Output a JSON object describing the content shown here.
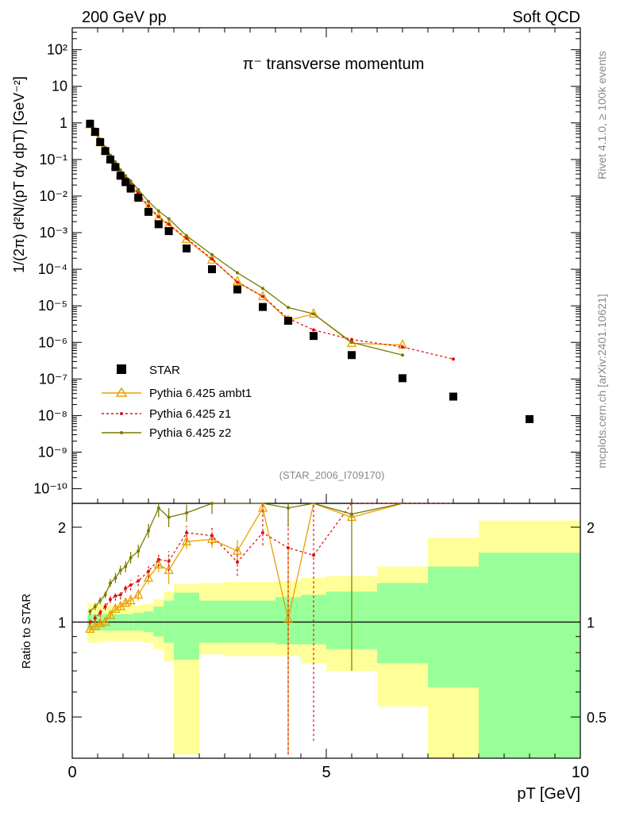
{
  "chart_data": {
    "type": "scatter",
    "header_left": "200 GeV pp",
    "header_right": "Soft QCD",
    "title": "π⁻ transverse momentum",
    "analysis_tag": "(STAR_2006_I709170)",
    "side_text_top": "Rivet 4.1.0, ≥ 100k events",
    "side_text_bottom": "mcplots.cern.ch [arXiv:2401.10621]",
    "ylabel": "1/(2π)  d²N/(pT dy dpT) [GeV⁻²]",
    "ratio_ylabel": "Ratio to STAR",
    "xlabel": "pT [GeV]",
    "xlim": [
      0,
      10
    ],
    "ylim_log10": [
      -10.4,
      2.6
    ],
    "ratio_ylim": [
      0.37,
      2.38
    ],
    "x_ticks": [
      "0",
      "5",
      "10"
    ],
    "y_ticks": [
      "10⁻¹⁰",
      "10⁻⁹",
      "10⁻⁸",
      "10⁻⁷",
      "10⁻⁶",
      "10⁻⁵",
      "10⁻⁴",
      "10⁻³",
      "10⁻²",
      "10⁻¹",
      "1",
      "10",
      "10²"
    ],
    "ratio_ticks": [
      "0.5",
      "1",
      "2"
    ],
    "legend": [
      "STAR",
      "Pythia 6.425 ambt1",
      "Pythia 6.425 z1",
      "Pythia 6.425 z2"
    ],
    "colors": {
      "data": "#000000",
      "ambt1": "#e8a000",
      "z1": "#dd1111",
      "z2": "#7a7a00",
      "band_inner": "#99ff99",
      "band_outer": "#ffff99"
    },
    "data": {
      "x": [
        0.35,
        0.45,
        0.55,
        0.65,
        0.75,
        0.85,
        0.95,
        1.05,
        1.15,
        1.3,
        1.5,
        1.7,
        1.9,
        2.25,
        2.75,
        3.25,
        3.75,
        4.25,
        4.75,
        5.5,
        6.5,
        7.5,
        9.0
      ],
      "y": [
        0.95,
        0.57,
        0.3,
        0.17,
        0.1,
        0.062,
        0.036,
        0.024,
        0.016,
        0.009,
        0.0037,
        0.0017,
        0.0011,
        0.00037,
        0.0001,
        2.8e-05,
        9.3e-06,
        3.9e-06,
        1.5e-06,
        4.5e-07,
        1.05e-07,
        3.3e-08,
        8e-09
      ]
    },
    "bands": {
      "edges": [
        0.3,
        0.4,
        0.5,
        0.6,
        0.7,
        0.8,
        0.9,
        1.0,
        1.1,
        1.2,
        1.4,
        1.6,
        1.8,
        2.0,
        2.5,
        3.0,
        3.5,
        4.0,
        4.5,
        5.0,
        6.0,
        7.0,
        8.0,
        10.0
      ],
      "outer_up": [
        1.15,
        1.14,
        1.14,
        1.13,
        1.13,
        1.13,
        1.13,
        1.13,
        1.13,
        1.13,
        1.14,
        1.18,
        1.25,
        1.32,
        1.33,
        1.34,
        1.34,
        1.35,
        1.38,
        1.4,
        1.5,
        1.85,
        2.1
      ],
      "outer_lo": [
        0.86,
        0.86,
        0.86,
        0.87,
        0.87,
        0.87,
        0.87,
        0.87,
        0.87,
        0.87,
        0.86,
        0.82,
        0.75,
        0.38,
        0.79,
        0.78,
        0.78,
        0.78,
        0.74,
        0.7,
        0.54,
        0.35,
        0.35
      ],
      "inner_up": [
        1.06,
        1.06,
        1.06,
        1.06,
        1.06,
        1.06,
        1.06,
        1.06,
        1.06,
        1.07,
        1.08,
        1.12,
        1.17,
        1.24,
        1.17,
        1.17,
        1.17,
        1.2,
        1.22,
        1.25,
        1.33,
        1.5,
        1.66
      ],
      "inner_lo": [
        0.94,
        0.94,
        0.94,
        0.94,
        0.94,
        0.94,
        0.94,
        0.94,
        0.94,
        0.94,
        0.93,
        0.9,
        0.86,
        0.76,
        0.86,
        0.86,
        0.86,
        0.85,
        0.85,
        0.82,
        0.74,
        0.62,
        0.35
      ]
    },
    "series": [
      {
        "name": "Pythia 6.425 ambt1",
        "key": "ambt1",
        "marker": "triangle",
        "dash": "",
        "x": [
          0.35,
          0.45,
          0.55,
          0.65,
          0.75,
          0.85,
          0.95,
          1.05,
          1.15,
          1.3,
          1.5,
          1.7,
          1.9,
          2.25,
          2.75,
          3.25,
          3.75,
          4.25,
          4.75,
          5.5,
          6.5
        ],
        "y": [
          0.9,
          0.55,
          0.29,
          0.175,
          0.105,
          0.068,
          0.04,
          0.027,
          0.019,
          0.011,
          0.0048,
          0.0026,
          0.0016,
          0.00066,
          0.00018,
          4.6e-05,
          1.8e-05,
          4e-06,
          6e-06,
          9.5e-07,
          8.5e-07
        ],
        "ratio": [
          0.95,
          0.97,
          0.99,
          1.0,
          1.05,
          1.1,
          1.12,
          1.15,
          1.17,
          1.22,
          1.38,
          1.52,
          1.46,
          1.8,
          1.83,
          1.68,
          2.3,
          1.02,
          4.0,
          2.15,
          8.0
        ],
        "err_lo": [
          0.93,
          0.95,
          0.97,
          0.98,
          1.03,
          1.08,
          1.09,
          1.12,
          1.13,
          1.17,
          1.32,
          1.44,
          1.32,
          1.7,
          1.72,
          1.55,
          2.2,
          0.38
        ],
        "err_hi": [
          0.98,
          1.0,
          1.02,
          1.03,
          1.08,
          1.13,
          1.16,
          1.19,
          1.22,
          1.27,
          1.45,
          1.6,
          1.6,
          1.9,
          1.94,
          1.82,
          2.4,
          1.7
        ]
      },
      {
        "name": "Pythia 6.425 z1",
        "key": "z1",
        "marker": "dot",
        "dash": "3,3",
        "x": [
          0.35,
          0.45,
          0.55,
          0.65,
          0.75,
          0.85,
          0.95,
          1.05,
          1.15,
          1.3,
          1.5,
          1.7,
          1.9,
          2.25,
          2.75,
          3.25,
          3.75,
          4.25,
          4.75,
          5.5,
          6.5,
          7.5
        ],
        "y": [
          0.95,
          0.59,
          0.32,
          0.19,
          0.12,
          0.075,
          0.044,
          0.031,
          0.021,
          0.012,
          0.0054,
          0.0027,
          0.0017,
          0.0007,
          0.00019,
          4.4e-05,
          1.8e-05,
          4.5e-06,
          2.2e-06,
          1.2e-06,
          7.5e-07,
          3.5e-07
        ],
        "ratio": [
          1.0,
          1.03,
          1.07,
          1.12,
          1.18,
          1.21,
          1.22,
          1.28,
          1.31,
          1.35,
          1.45,
          1.58,
          1.56,
          1.92,
          1.88,
          1.55,
          1.92,
          1.72,
          1.63,
          3.2,
          7.0,
          10.0
        ],
        "err_lo": [
          0.98,
          1.0,
          1.04,
          1.09,
          1.15,
          1.17,
          1.18,
          1.24,
          1.26,
          1.3,
          1.38,
          1.5,
          1.45,
          1.8,
          1.76,
          1.4,
          1.75,
          0.38,
          0.42
        ],
        "err_hi": [
          1.02,
          1.06,
          1.1,
          1.15,
          1.21,
          1.25,
          1.26,
          1.32,
          1.36,
          1.41,
          1.52,
          1.66,
          1.68,
          2.02,
          2.0,
          1.7,
          2.4,
          2.4,
          2.4
        ]
      },
      {
        "name": "Pythia 6.425 z2",
        "key": "z2",
        "marker": "dot",
        "dash": "",
        "x": [
          0.35,
          0.45,
          0.55,
          0.65,
          0.75,
          0.85,
          0.95,
          1.05,
          1.15,
          1.3,
          1.5,
          1.7,
          1.9,
          2.25,
          2.75,
          3.25,
          3.75,
          4.25,
          4.75,
          5.5,
          6.5
        ],
        "y": [
          1.02,
          0.62,
          0.34,
          0.21,
          0.13,
          0.085,
          0.052,
          0.036,
          0.026,
          0.015,
          0.0071,
          0.0039,
          0.0024,
          0.00082,
          0.00025,
          8e-05,
          3e-05,
          9e-06,
          6e-06,
          1e-06,
          4.5e-07
        ],
        "ratio": [
          1.08,
          1.12,
          1.17,
          1.22,
          1.33,
          1.38,
          1.46,
          1.5,
          1.6,
          1.68,
          1.95,
          2.3,
          2.15,
          2.22,
          2.38,
          2.8,
          3.2,
          2.3,
          4.0,
          2.2,
          4.3
        ],
        "err_lo": [
          1.05,
          1.09,
          1.14,
          1.19,
          1.29,
          1.33,
          1.41,
          1.44,
          1.53,
          1.6,
          1.85,
          2.15,
          2.0,
          2.08,
          2.2,
          2.5,
          2.6,
          2.0,
          3.0,
          0.7
        ],
        "err_hi": [
          1.1,
          1.15,
          1.2,
          1.25,
          1.37,
          1.43,
          1.51,
          1.56,
          1.67,
          1.76,
          2.05,
          2.45,
          2.3,
          2.36,
          2.5,
          2.9,
          3.5,
          2.6,
          5.0,
          6.0
        ]
      }
    ]
  }
}
